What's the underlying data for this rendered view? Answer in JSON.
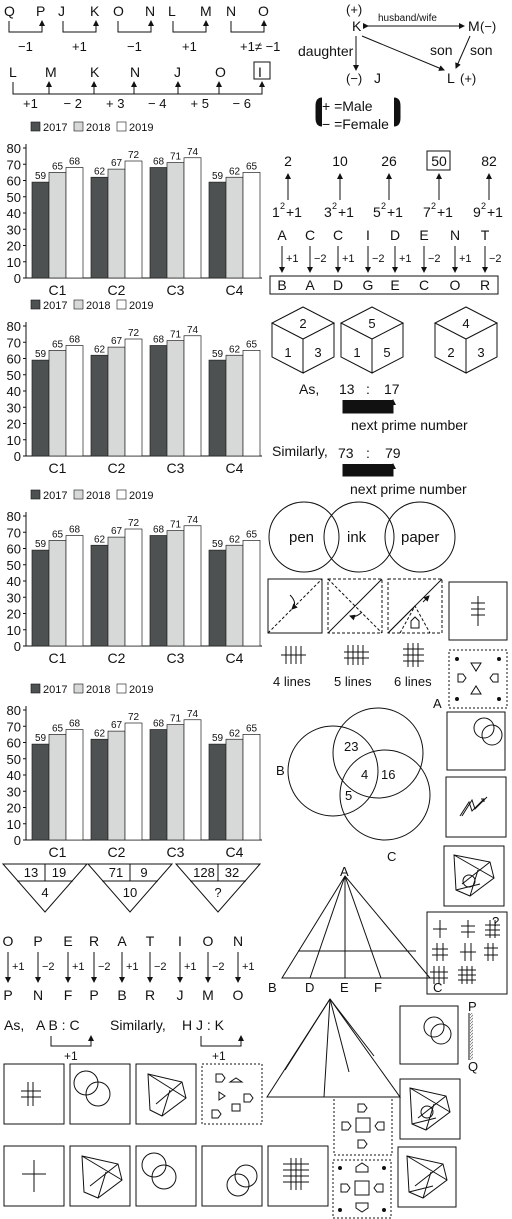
{
  "letter_shift_1": {
    "pairs": [
      [
        "Q",
        "P"
      ],
      [
        "J",
        "K"
      ],
      [
        "O",
        "N"
      ],
      [
        "L",
        "M"
      ],
      [
        "N",
        "O"
      ]
    ],
    "labels": [
      "−1",
      "+1",
      "−1",
      "+1",
      "+1≠ −1"
    ]
  },
  "letter_shift_2": {
    "letters": [
      "L",
      "M",
      "K",
      "N",
      "J",
      "O",
      "I"
    ],
    "labels": [
      "+1",
      "− 2",
      "+ 3",
      "− 4",
      "+ 5",
      "− 6"
    ]
  },
  "family_tree": {
    "k": "K",
    "k_sign": "(+)",
    "m": "M",
    "m_sign": "(−)",
    "j": "J",
    "j_sign": "(−)",
    "l": "L",
    "l_sign": "(+)",
    "husband_wife": "husband/wife",
    "daughter": "daughter",
    "son_1": "son",
    "son_2": "son",
    "legend_male": "+ =Male",
    "legend_female": "− =Female"
  },
  "chart_data": [
    {
      "type": "bar",
      "categories": [
        "C1",
        "C2",
        "C3",
        "C4"
      ],
      "series": [
        {
          "name": "2017",
          "values": [
            59,
            62,
            68,
            59
          ]
        },
        {
          "name": "2018",
          "values": [
            65,
            67,
            71,
            62
          ]
        },
        {
          "name": "2019",
          "values": [
            68,
            72,
            74,
            65
          ]
        }
      ],
      "ylim": [
        0,
        80
      ],
      "yticks": [
        0,
        10,
        20,
        30,
        40,
        50,
        60,
        70,
        80
      ],
      "colors": [
        "#4d5151",
        "#d7d9d9",
        "#ffffff"
      ],
      "legend": "top"
    },
    {
      "type": "bar",
      "categories": [
        "C1",
        "C2",
        "C3",
        "C4"
      ],
      "series": [
        {
          "name": "2017",
          "values": [
            59,
            62,
            68,
            59
          ]
        },
        {
          "name": "2018",
          "values": [
            65,
            67,
            71,
            62
          ]
        },
        {
          "name": "2019",
          "values": [
            68,
            72,
            74,
            65
          ]
        }
      ],
      "ylim": [
        0,
        80
      ],
      "yticks": [
        0,
        10,
        20,
        30,
        40,
        50,
        60,
        70,
        80
      ],
      "colors": [
        "#4d5151",
        "#d7d9d9",
        "#ffffff"
      ],
      "legend": "top"
    },
    {
      "type": "bar",
      "categories": [
        "C1",
        "C2",
        "C3",
        "C4"
      ],
      "series": [
        {
          "name": "2017",
          "values": [
            59,
            62,
            68,
            59
          ]
        },
        {
          "name": "2018",
          "values": [
            65,
            67,
            71,
            62
          ]
        },
        {
          "name": "2019",
          "values": [
            68,
            72,
            74,
            65
          ]
        }
      ],
      "ylim": [
        0,
        80
      ],
      "yticks": [
        0,
        10,
        20,
        30,
        40,
        50,
        60,
        70,
        80
      ],
      "colors": [
        "#4d5151",
        "#d7d9d9",
        "#ffffff"
      ],
      "legend": "top"
    },
    {
      "type": "bar",
      "categories": [
        "C1",
        "C2",
        "C3",
        "C4"
      ],
      "series": [
        {
          "name": "2017",
          "values": [
            59,
            62,
            68,
            59
          ]
        },
        {
          "name": "2018",
          "values": [
            65,
            67,
            71,
            62
          ]
        },
        {
          "name": "2019",
          "values": [
            68,
            72,
            74,
            65
          ]
        }
      ],
      "ylim": [
        0,
        80
      ],
      "yticks": [
        0,
        10,
        20,
        30,
        40,
        50,
        60,
        70,
        80
      ],
      "colors": [
        "#4d5151",
        "#d7d9d9",
        "#ffffff"
      ],
      "legend": "top"
    }
  ],
  "squares_series": {
    "values": [
      "2",
      "10",
      "26",
      "50",
      "82"
    ],
    "bases": [
      "1",
      "3",
      "5",
      "7",
      "9"
    ],
    "exp": "2",
    "plus": "+1"
  },
  "code_mapping_1": {
    "top": [
      "A",
      "C",
      "C",
      "I",
      "D",
      "E",
      "N",
      "T"
    ],
    "ops": [
      "+1",
      "−2",
      "+1",
      "−2",
      "+1",
      "−2",
      "+1",
      "−2"
    ],
    "bottom": [
      "B",
      "A",
      "D",
      "G",
      "E",
      "C",
      "O",
      "R"
    ]
  },
  "cubes": [
    {
      "top": "2",
      "left": "1",
      "right": "3"
    },
    {
      "top": "5",
      "left": "1",
      "right": "5"
    },
    {
      "top": "4",
      "left": "2",
      "right": "3"
    }
  ],
  "prime_analogy": {
    "as": "As,",
    "a": "13",
    "b": "17",
    "similarly": "Similarly,",
    "c": "73",
    "d": "79",
    "colon": ":",
    "note": "next prime number"
  },
  "venn_words": [
    "pen",
    "ink",
    "paper"
  ],
  "lines_labels": [
    "4 lines",
    "5 lines",
    "6 lines"
  ],
  "venn_numbers": {
    "a": "A",
    "b": "B",
    "c": "C",
    "ab": "23",
    "center": "4",
    "ac": "16",
    "bc": "5"
  },
  "triangles": [
    {
      "top_left": "13",
      "top_right": "19",
      "bottom": "4"
    },
    {
      "top_left": "71",
      "top_right": "9",
      "bottom": "10"
    },
    {
      "top_left": "128",
      "top_right": "32",
      "bottom": "?"
    }
  ],
  "code_mapping_2": {
    "top": [
      "O",
      "P",
      "E",
      "R",
      "A",
      "T",
      "I",
      "O",
      "N"
    ],
    "ops": [
      "+1",
      "−2",
      "+1",
      "−2",
      "+1",
      "−2",
      "+1",
      "−2",
      "+1"
    ],
    "bottom": [
      "P",
      "N",
      "F",
      "P",
      "B",
      "R",
      "J",
      "M",
      "O"
    ]
  },
  "letter_analogy": {
    "as": "As,",
    "left": "A B : C",
    "similarly": "Similarly,",
    "right": "H J : K",
    "op1": "+1",
    "op2": "+1"
  },
  "triangle_labels": {
    "a": "A",
    "b": "B",
    "d": "D",
    "e": "E",
    "f": "F",
    "c": "C"
  },
  "tally_grid": {
    "question": "?"
  },
  "mirror_labels": {
    "p": "P",
    "q": "Q"
  }
}
